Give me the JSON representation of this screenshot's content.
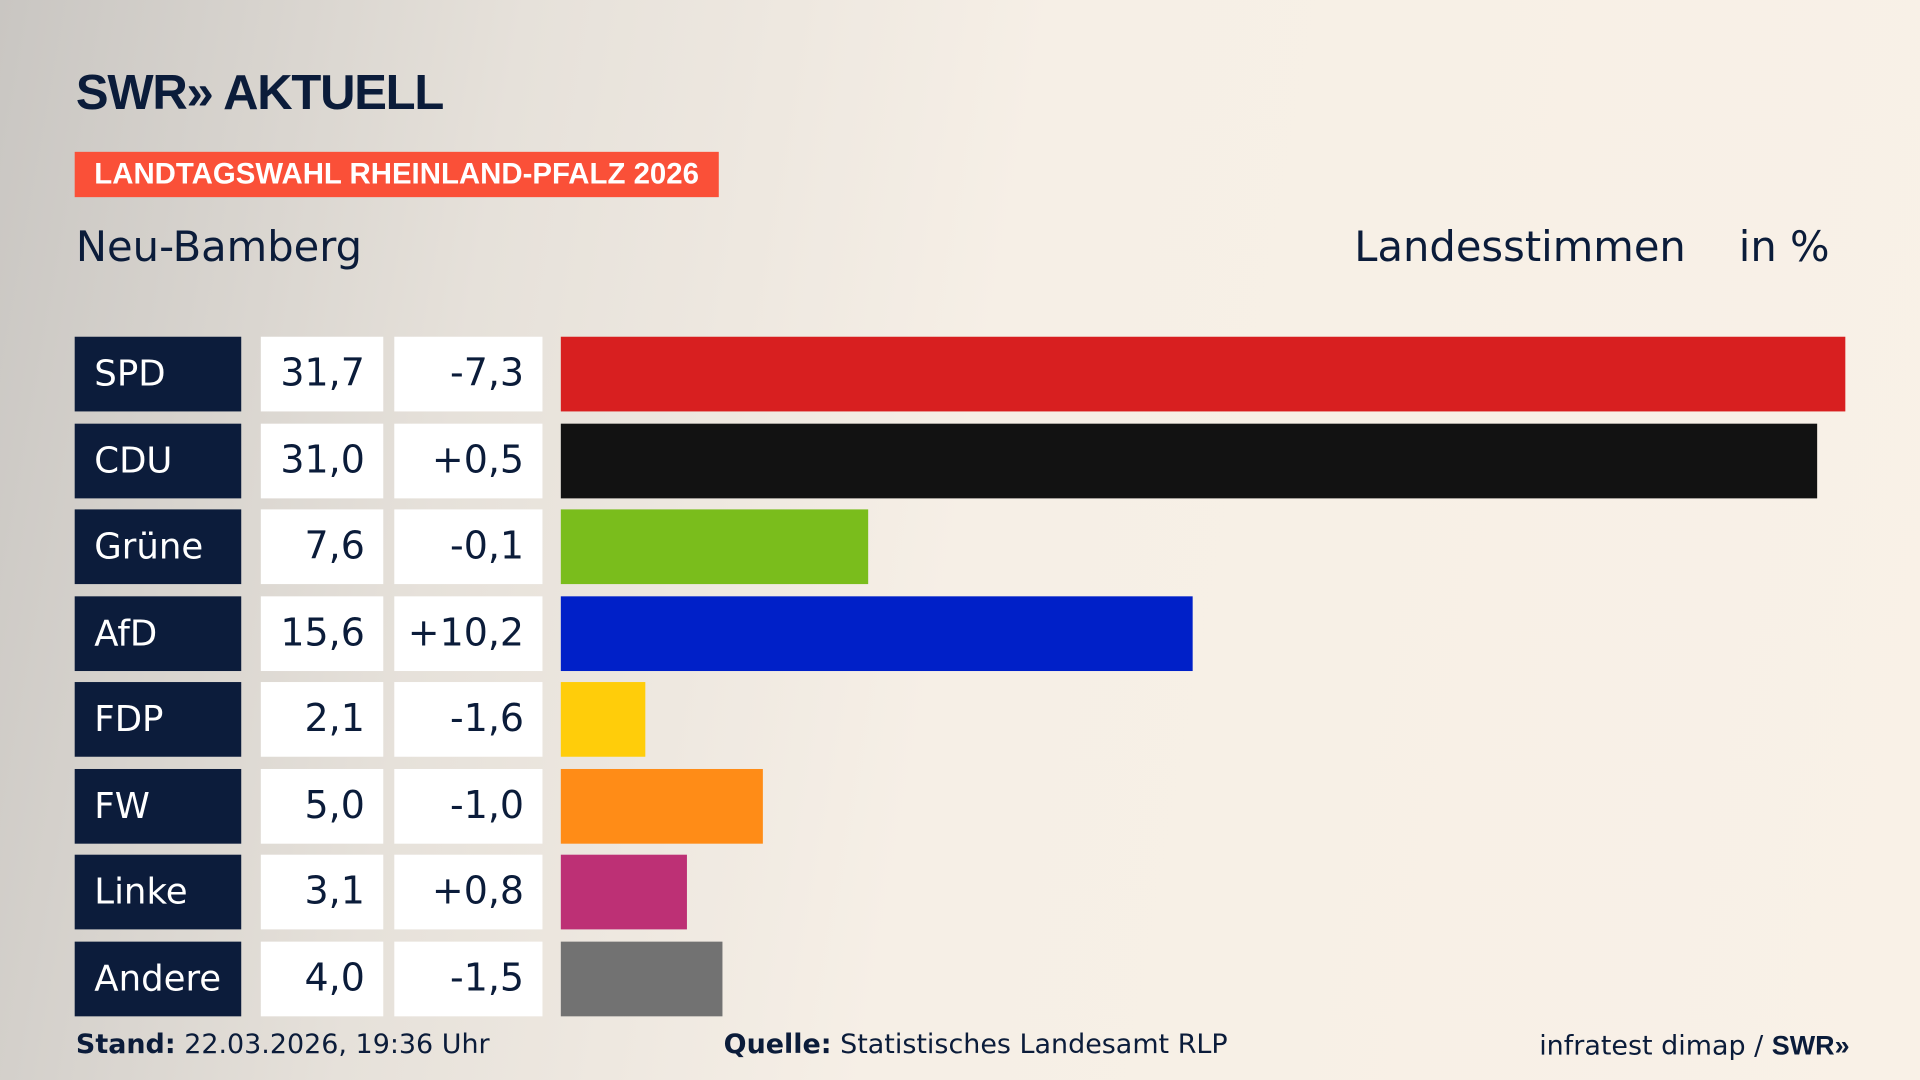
{
  "header": {
    "logo": "SWR» AKTUELL",
    "banner": "LANDTAGSWAHL RHEINLAND-PFALZ 2026",
    "region": "Neu-Bamberg",
    "measure": "Landesstimmen",
    "unit": "in %"
  },
  "chart_data": {
    "type": "bar",
    "orientation": "horizontal",
    "xlim": [
      0,
      31.7
    ],
    "categories": [
      "SPD",
      "CDU",
      "Grüne",
      "AfD",
      "FDP",
      "FW",
      "Linke",
      "Andere"
    ],
    "values": [
      "31,7",
      "31,0",
      "7,6",
      "15,6",
      "2,1",
      "5,0",
      "3,1",
      "4,0"
    ],
    "numeric_values": [
      31.7,
      31.0,
      7.6,
      15.6,
      2.1,
      5.0,
      3.1,
      4.0
    ],
    "changes": [
      "-7,3",
      "+0,5",
      "-0,1",
      "+10,2",
      "-1,6",
      "-1,0",
      "+0,8",
      "-1,5"
    ],
    "colors": [
      "#d81f20",
      "#121212",
      "#7abd1c",
      "#0020c8",
      "#ffcd0a",
      "#ff8c17",
      "#bd3075",
      "#727272"
    ]
  },
  "footer": {
    "stand_label": "Stand:",
    "stand": "22.03.2026, 19:36 Uhr",
    "source_label": "Quelle:",
    "source": "Statistisches Landesamt RLP",
    "credit": "infratest dimap /",
    "credit_logo": "SWR»"
  }
}
